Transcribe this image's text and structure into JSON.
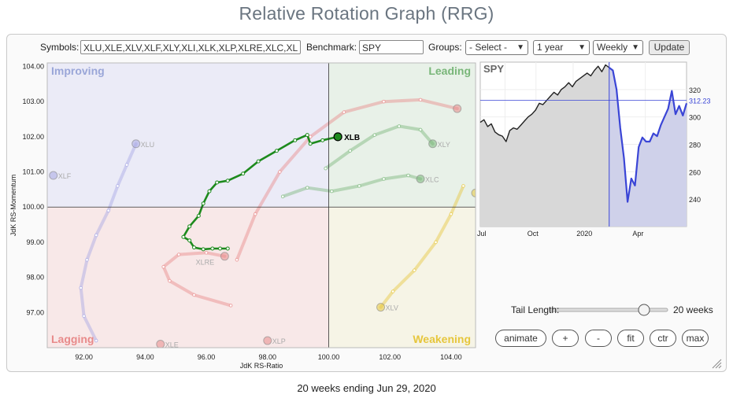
{
  "page": {
    "title": "Relative Rotation Graph (RRG)",
    "footer": "20 weeks ending Jun 29, 2020"
  },
  "controls": {
    "symbols_label": "Symbols:",
    "symbols_value": "XLU,XLE,XLV,XLF,XLY,XLI,XLK,XLP,XLRE,XLC,XL",
    "benchmark_label": "Benchmark:",
    "benchmark_value": "SPY",
    "groups_label": "Groups:",
    "groups_value": "- Select -",
    "period_value": "1 year",
    "frequency_value": "Weekly",
    "update_label": "Update"
  },
  "tail": {
    "label": "Tail Length:",
    "value_label": "20 weeks",
    "weeks": 20,
    "max_weeks": 25
  },
  "buttons": {
    "animate": "animate",
    "plus": "+",
    "minus": "-",
    "fit": "fit",
    "ctr": "ctr",
    "max": "max"
  },
  "chart_data": [
    {
      "type": "scatter",
      "subtype": "relative-rotation-graph",
      "xlabel": "JdK RS-Ratio",
      "ylabel": "JdK RS-Momentum",
      "xlim": [
        90.8,
        104.8
      ],
      "ylim": [
        96.0,
        104.1
      ],
      "xticks": [
        "92.00",
        "94.00",
        "96.00",
        "98.00",
        "100.00",
        "102.00",
        "104.00"
      ],
      "yticks": [
        "97.00",
        "98.00",
        "99.00",
        "100.00",
        "101.00",
        "102.00",
        "103.00",
        "104.00"
      ],
      "grid": false,
      "center": [
        100,
        100
      ],
      "quadrants": [
        {
          "name": "Improving",
          "position": "top-left",
          "color": "#9aa6d8",
          "fill": "#ebebf7"
        },
        {
          "name": "Leading",
          "position": "top-right",
          "color": "#79b679",
          "fill": "#e8f1e8"
        },
        {
          "name": "Lagging",
          "position": "bottom-left",
          "color": "#e88a8a",
          "fill": "#f8e8e8"
        },
        {
          "name": "Weakening",
          "position": "bottom-right",
          "color": "#e6c63c",
          "fill": "#f6f4e6"
        }
      ],
      "highlight": "XLB",
      "series": [
        {
          "name": "XLB",
          "color": "#1d8a1d",
          "faded": false,
          "points": [
            [
              96.7,
              98.82
            ],
            [
              96.45,
              98.82
            ],
            [
              96.2,
              98.82
            ],
            [
              95.9,
              98.8
            ],
            [
              95.6,
              98.85
            ],
            [
              95.45,
              99.05
            ],
            [
              95.25,
              99.15
            ],
            [
              95.45,
              99.45
            ],
            [
              95.75,
              99.75
            ],
            [
              95.9,
              100.1
            ],
            [
              96.1,
              100.45
            ],
            [
              96.35,
              100.7
            ],
            [
              96.7,
              100.75
            ],
            [
              97.2,
              100.95
            ],
            [
              97.7,
              101.3
            ],
            [
              98.3,
              101.6
            ],
            [
              98.9,
              101.9
            ],
            [
              99.3,
              102.05
            ],
            [
              99.4,
              101.8
            ],
            [
              99.8,
              101.9
            ],
            [
              100.3,
              102.0
            ]
          ],
          "label_at": [
            100.3,
            102.0
          ]
        },
        {
          "name": "XLU",
          "color": "#a7a7e4",
          "faded": true,
          "points": [
            [
              92.4,
              96.2
            ],
            [
              92.0,
              96.9
            ],
            [
              91.9,
              97.7
            ],
            [
              92.1,
              98.5
            ],
            [
              92.4,
              99.2
            ],
            [
              92.8,
              99.9
            ],
            [
              93.1,
              100.6
            ],
            [
              93.4,
              101.2
            ],
            [
              93.7,
              101.8
            ]
          ],
          "label_at": [
            93.7,
            101.8
          ]
        },
        {
          "name": "XLF",
          "color": "#a7a7e4",
          "faded": true,
          "points": [
            [
              91.0,
              100.9
            ]
          ],
          "label_at": [
            91.0,
            100.9
          ]
        },
        {
          "name": "XLRE",
          "color": "#e88a8a",
          "faded": true,
          "points": [
            [
              96.8,
              97.2
            ],
            [
              95.6,
              97.5
            ],
            [
              94.8,
              97.9
            ],
            [
              94.6,
              98.3
            ],
            [
              95.1,
              98.65
            ],
            [
              96.0,
              98.7
            ],
            [
              96.6,
              98.6
            ]
          ],
          "label_at": [
            95.5,
            98.45
          ]
        },
        {
          "name": "XLE",
          "color": "#e88a8a",
          "faded": true,
          "points": [
            [
              94.5,
              96.1
            ]
          ],
          "label_at": [
            94.5,
            96.1
          ]
        },
        {
          "name": "XLP",
          "color": "#e88a8a",
          "faded": true,
          "points": [
            [
              98.0,
              96.2
            ]
          ],
          "label_at": [
            98.0,
            96.2
          ]
        },
        {
          "name": "XLY",
          "color": "#79b679",
          "faded": true,
          "points": [
            [
              99.9,
              101.1
            ],
            [
              100.7,
              101.6
            ],
            [
              101.5,
              102.05
            ],
            [
              102.3,
              102.3
            ],
            [
              103.0,
              102.2
            ],
            [
              103.4,
              101.8
            ]
          ],
          "label_at": [
            103.4,
            101.8
          ]
        },
        {
          "name": "XLC",
          "color": "#79b679",
          "faded": true,
          "points": [
            [
              98.5,
              100.3
            ],
            [
              99.3,
              100.55
            ],
            [
              100.1,
              100.45
            ],
            [
              101.0,
              100.6
            ],
            [
              101.8,
              100.8
            ],
            [
              102.6,
              100.9
            ],
            [
              103.0,
              100.8
            ]
          ],
          "label_at": [
            103.0,
            100.8
          ]
        },
        {
          "name": "XLV",
          "color": "#e6c63c",
          "faded": true,
          "points": [
            [
              104.4,
              100.6
            ],
            [
              104.0,
              99.8
            ],
            [
              103.5,
              99.0
            ],
            [
              102.8,
              98.2
            ],
            [
              102.1,
              97.6
            ],
            [
              101.7,
              97.15
            ]
          ],
          "label_at": [
            101.7,
            97.15
          ]
        },
        {
          "name": "XLK",
          "color": "#e6c63c",
          "faded": true,
          "points": [
            [
              104.8,
              100.4
            ]
          ],
          "label_at": [
            104.8,
            100.4
          ]
        },
        {
          "name": "XLI",
          "color": "#e88a8a",
          "faded": true,
          "points": [
            [
              97.0,
              98.5
            ],
            [
              97.6,
              99.8
            ],
            [
              98.4,
              101.0
            ],
            [
              99.4,
              102.0
            ],
            [
              100.5,
              102.7
            ],
            [
              101.8,
              103.0
            ],
            [
              103.0,
              103.05
            ],
            [
              104.2,
              102.8
            ]
          ],
          "label_at": null
        }
      ]
    },
    {
      "type": "area",
      "title": "SPY",
      "x_labels": [
        "Jul",
        "Oct",
        "2020",
        "Apr"
      ],
      "yticks": [
        240,
        260,
        280,
        300,
        320
      ],
      "ylim": [
        220,
        340
      ],
      "last_value": "312.23",
      "last_value_number": 312.23,
      "series": [
        {
          "color": "#222222",
          "fill": "#d8d8d8",
          "values": [
            296,
            298,
            293,
            295,
            289,
            287,
            286,
            282,
            290,
            292,
            291,
            294,
            297,
            300,
            302,
            305,
            310,
            309,
            312,
            315,
            318,
            316,
            320,
            322,
            325,
            322,
            326,
            328,
            330,
            332,
            330,
            334,
            337,
            333,
            338,
            336
          ]
        },
        {
          "color": "#3a45d6",
          "fill": "#cfd1ea",
          "values": [
            336,
            334,
            320,
            292,
            270,
            238,
            255,
            250,
            278,
            285,
            282,
            282,
            288,
            286,
            294,
            300,
            306,
            319,
            302,
            308,
            301,
            310
          ]
        }
      ]
    }
  ]
}
